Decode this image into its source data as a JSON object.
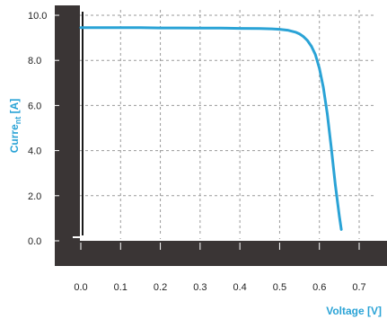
{
  "chart_data": {
    "type": "line",
    "title": "",
    "xlabel": "Voltage [V]",
    "ylabel": "Current [A]",
    "ylabel_parts": {
      "main": "Curre",
      "sub": "nt",
      "tail": " [A]"
    },
    "xlim": [
      0.0,
      0.7
    ],
    "ylim": [
      0.0,
      10.0
    ],
    "xticks": [
      "0.0",
      "0.1",
      "0.2",
      "0.3",
      "0.4",
      "0.5",
      "0.6",
      "0.7"
    ],
    "yticks": [
      "0.0",
      "2.0",
      "4.0",
      "6.0",
      "8.0",
      "10.0"
    ],
    "grid": true,
    "colors": {
      "series": "#2aa3d6",
      "labels": "#2aa3d6",
      "frame": "#3a3535",
      "grid": "#9a9a9a"
    },
    "series": [
      {
        "name": "",
        "x": [
          0.0,
          0.05,
          0.1,
          0.15,
          0.2,
          0.25,
          0.3,
          0.35,
          0.4,
          0.45,
          0.48,
          0.5,
          0.52,
          0.54,
          0.55,
          0.56,
          0.57,
          0.58,
          0.59,
          0.6,
          0.61,
          0.62,
          0.63,
          0.64,
          0.65,
          0.655
        ],
        "y": [
          9.45,
          9.45,
          9.45,
          9.45,
          9.44,
          9.44,
          9.43,
          9.43,
          9.42,
          9.41,
          9.4,
          9.38,
          9.34,
          9.25,
          9.17,
          9.05,
          8.88,
          8.62,
          8.25,
          7.65,
          6.8,
          5.6,
          4.1,
          2.5,
          1.1,
          0.5
        ]
      }
    ]
  }
}
